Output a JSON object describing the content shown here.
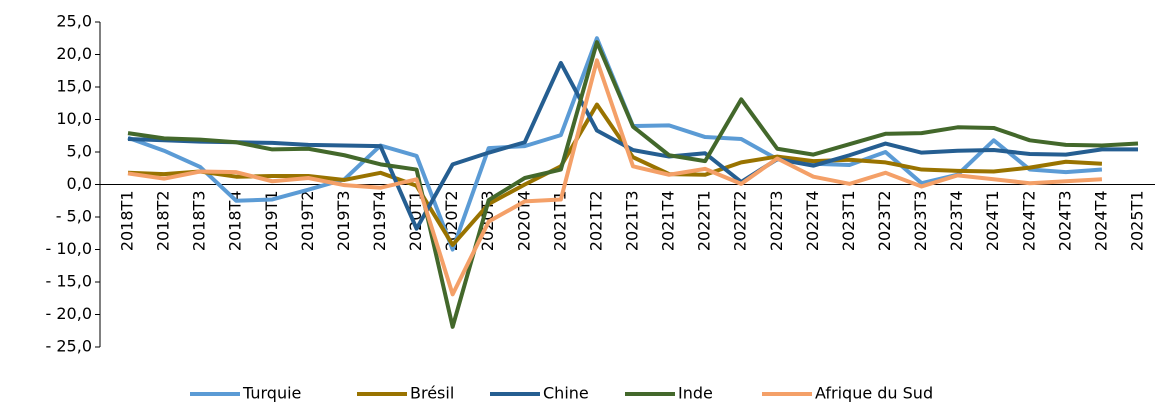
{
  "chart_data": {
    "type": "line",
    "categories": [
      "2018T1",
      "2018T2",
      "2018T3",
      "2018T4",
      "2019T1",
      "2019T2",
      "2019T3",
      "2019T4",
      "2020T1",
      "2020T2",
      "2020T3",
      "2020T4",
      "2021T1",
      "2021T2",
      "2021T3",
      "2021T4",
      "2022T1",
      "2022T2",
      "2022T3",
      "2022T4",
      "2023T1",
      "2023T2",
      "2023T3",
      "2023T4",
      "2024T1",
      "2024T2",
      "2024T3",
      "2024T4",
      "2025T1"
    ],
    "series": [
      {
        "name": "Turquie",
        "color": "#5b9bd5",
        "values": [
          7.2,
          5.2,
          2.7,
          -2.5,
          -2.3,
          -0.8,
          0.8,
          6.0,
          4.4,
          -10.0,
          5.6,
          5.9,
          7.6,
          22.5,
          9.0,
          9.1,
          7.3,
          7.0,
          3.9,
          3.2,
          3.0,
          5.0,
          0.2,
          1.5,
          6.8,
          2.3,
          1.9,
          2.3,
          null
        ]
      },
      {
        "name": "Brésil",
        "color": "#997300",
        "values": [
          1.8,
          1.6,
          2.0,
          1.2,
          1.3,
          1.3,
          0.7,
          1.8,
          -0.2,
          -9.3,
          -3.0,
          0.0,
          2.8,
          12.3,
          4.2,
          1.6,
          1.5,
          3.4,
          4.3,
          3.6,
          3.8,
          3.4,
          2.3,
          2.1,
          2.0,
          2.6,
          3.5,
          3.2,
          null
        ]
      },
      {
        "name": "Chine",
        "color": "#255e91",
        "values": [
          7.0,
          6.8,
          6.6,
          6.5,
          6.4,
          6.1,
          6.0,
          5.9,
          -6.8,
          3.1,
          4.9,
          6.5,
          18.7,
          8.3,
          5.3,
          4.3,
          4.8,
          0.4,
          3.9,
          2.9,
          4.5,
          6.3,
          4.9,
          5.2,
          5.3,
          4.7,
          4.6,
          5.4,
          5.4
        ]
      },
      {
        "name": "Inde",
        "color": "#43682b",
        "values": [
          7.9,
          7.1,
          6.9,
          6.5,
          5.4,
          5.5,
          4.5,
          3.1,
          2.3,
          -21.9,
          -2.4,
          1.0,
          2.3,
          21.9,
          8.9,
          4.5,
          3.6,
          13.1,
          5.5,
          4.6,
          6.2,
          7.8,
          7.9,
          8.8,
          8.7,
          6.8,
          6.1,
          6.0,
          6.3
        ]
      },
      {
        "name": "Afrique du Sud",
        "color": "#f4a068",
        "values": [
          1.7,
          0.9,
          2.0,
          1.9,
          0.5,
          1.0,
          -0.1,
          -0.5,
          0.8,
          -16.9,
          -5.7,
          -2.6,
          -2.3,
          19.1,
          2.8,
          1.5,
          2.4,
          0.1,
          4.0,
          1.2,
          0.1,
          1.8,
          -0.3,
          1.4,
          0.8,
          0.2,
          0.5,
          0.8,
          null
        ]
      }
    ],
    "ylim": [
      -25,
      25
    ],
    "yticks": [
      {
        "value": 25,
        "label": "25,0"
      },
      {
        "value": 20,
        "label": "20,0"
      },
      {
        "value": 15,
        "label": "15,0"
      },
      {
        "value": 10,
        "label": "10,0"
      },
      {
        "value": 5,
        "label": "5,0"
      },
      {
        "value": 0,
        "label": "0,0"
      },
      {
        "value": -5,
        "label": "- 5,0"
      },
      {
        "value": -10,
        "label": "- 10,0"
      },
      {
        "value": -15,
        "label": "- 15,0"
      },
      {
        "value": -20,
        "label": "- 20,0"
      },
      {
        "value": -25,
        "label": "- 25,0"
      }
    ],
    "legend": "bottom"
  }
}
